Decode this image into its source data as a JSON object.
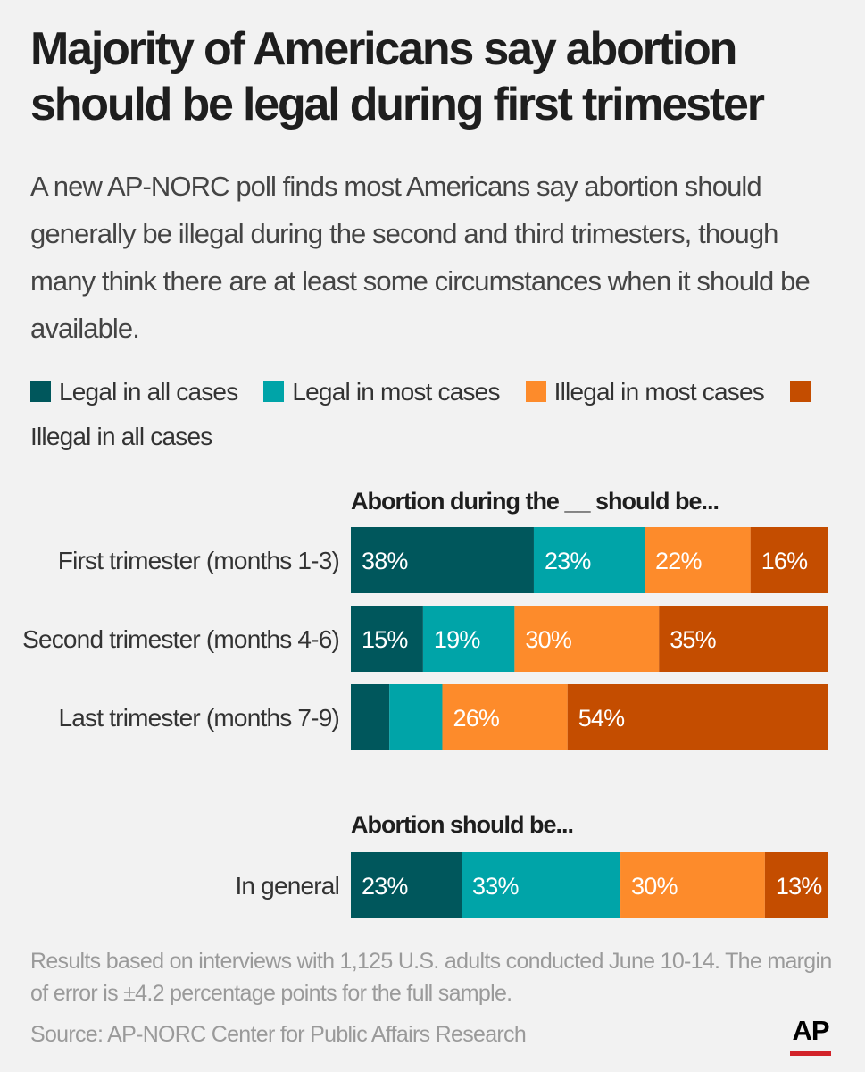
{
  "title": "Majority of Americans say abortion should be legal during first trimester",
  "subtitle": "A new AP-NORC poll finds most Americans say abortion should generally be illegal during the second and third trimesters, though many think there are at least some circumstances when it should be available.",
  "legend": [
    {
      "label": "Legal in all cases",
      "color": "#00575c"
    },
    {
      "label": "Legal in most cases",
      "color": "#00a4a8"
    },
    {
      "label": "Illegal in most cases",
      "color": "#fd8b2b"
    },
    {
      "label": "Illegal in all cases",
      "color": "#c44d00"
    }
  ],
  "chart_data": [
    {
      "type": "bar",
      "orientation": "horizontal-stacked",
      "title": "Abortion during the __ should be...",
      "categories": [
        "First trimester (months 1-3)",
        "Second trimester (months 4-6)",
        "Last trimester (months 7-9)"
      ],
      "series": [
        {
          "name": "Legal in all cases",
          "values": [
            38,
            15,
            8
          ],
          "labels": [
            "38%",
            "15%",
            ""
          ]
        },
        {
          "name": "Legal in most cases",
          "values": [
            23,
            19,
            11
          ],
          "labels": [
            "23%",
            "19%",
            ""
          ]
        },
        {
          "name": "Illegal in most cases",
          "values": [
            22,
            30,
            26
          ],
          "labels": [
            "22%",
            "30%",
            "26%"
          ]
        },
        {
          "name": "Illegal in all cases",
          "values": [
            16,
            35,
            54
          ],
          "labels": [
            "16%",
            "35%",
            "54%"
          ]
        }
      ]
    },
    {
      "type": "bar",
      "orientation": "horizontal-stacked",
      "title": "Abortion should be...",
      "categories": [
        "In general"
      ],
      "series": [
        {
          "name": "Legal in all cases",
          "values": [
            23
          ],
          "labels": [
            "23%"
          ]
        },
        {
          "name": "Legal in most cases",
          "values": [
            33
          ],
          "labels": [
            "33%"
          ]
        },
        {
          "name": "Illegal in most cases",
          "values": [
            30
          ],
          "labels": [
            "30%"
          ]
        },
        {
          "name": "Illegal in all cases",
          "values": [
            13
          ],
          "labels": [
            "13%"
          ]
        }
      ]
    }
  ],
  "note": "Results based on interviews with 1,125 U.S. adults conducted June 10-14. The margin of error is ±4.2 percentage points for the full sample.",
  "source": "Source: AP-NORC Center for Public Affairs Research",
  "logo": "AP"
}
